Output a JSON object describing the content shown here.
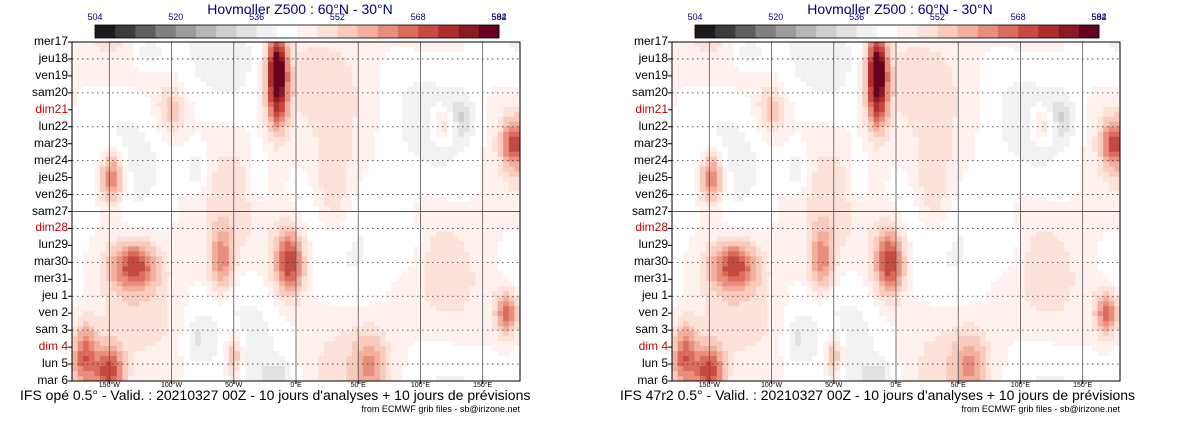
{
  "chart_data": [
    {
      "type": "heatmap",
      "title": "Hovmoller Z500 : 60°N - 30°N",
      "caption": "IFS opé 0.5° - Valid. : 20210327 00Z - 10 jours d'analyses + 10 jours de prévisions",
      "credit": "from ECMWF grib files - sb@irizone.net",
      "colorbar_labels": [
        "504",
        "520",
        "536",
        "552",
        "568",
        "584",
        "592"
      ],
      "colorbar_range": [
        504,
        592
      ],
      "y_labels": [
        "mer17",
        "jeu18",
        "ven19",
        "sam20",
        "dim21",
        "lun22",
        "mar23",
        "mer24",
        "jeu25",
        "ven26",
        "sam27",
        "dim28",
        "lun29",
        "mar30",
        "mer31",
        "jeu 1",
        "ven 2",
        "sam 3",
        "dim 4",
        "lun 5",
        "mar 6"
      ],
      "x_labels": [
        "150°W",
        "100°W",
        "50°W",
        "0°E",
        "50°E",
        "100°E",
        "150°E"
      ],
      "x_values": [
        -150,
        -100,
        -50,
        0,
        50,
        100,
        150
      ],
      "xlim": [
        -180,
        180
      ],
      "analysis_split_day": "sam27"
    },
    {
      "type": "heatmap",
      "title": "Hovmoller Z500 : 60°N - 30°N",
      "caption": "IFS 47r2 0.5° - Valid. : 20210327 00Z - 10 jours d'analyses + 10 jours de prévisions",
      "credit": "from ECMWF grib files - sb@irizone.net",
      "colorbar_labels": [
        "504",
        "520",
        "536",
        "552",
        "568",
        "584",
        "592"
      ],
      "colorbar_range": [
        504,
        592
      ],
      "y_labels": [
        "mer17",
        "jeu18",
        "ven19",
        "sam20",
        "dim21",
        "lun22",
        "mar23",
        "mer24",
        "jeu25",
        "ven26",
        "sam27",
        "dim28",
        "lun29",
        "mar30",
        "mer31",
        "jeu 1",
        "ven 2",
        "sam 3",
        "dim 4",
        "lun 5",
        "mar 6"
      ],
      "x_labels": [
        "150°W",
        "100°W",
        "50°W",
        "0°E",
        "50°E",
        "100°E",
        "150°E"
      ],
      "x_values": [
        -150,
        -100,
        -50,
        0,
        50,
        100,
        150
      ],
      "xlim": [
        -180,
        180
      ],
      "analysis_split_day": "sam27"
    }
  ],
  "colors": {
    "title": "#000080",
    "sunday": "#cc0000",
    "palette": [
      "#1a1a1a",
      "#3c3c3c",
      "#5e5e5e",
      "#808080",
      "#9c9c9c",
      "#b6b6b6",
      "#cecece",
      "#e2e2e2",
      "#f2f2f2",
      "#ffffff",
      "#fff2ee",
      "#fde2da",
      "#f9cbbd",
      "#f3af9d",
      "#e98e7c",
      "#d96c5c",
      "#c74a40",
      "#ae2d2d",
      "#8c1a24",
      "#66001e"
    ]
  }
}
